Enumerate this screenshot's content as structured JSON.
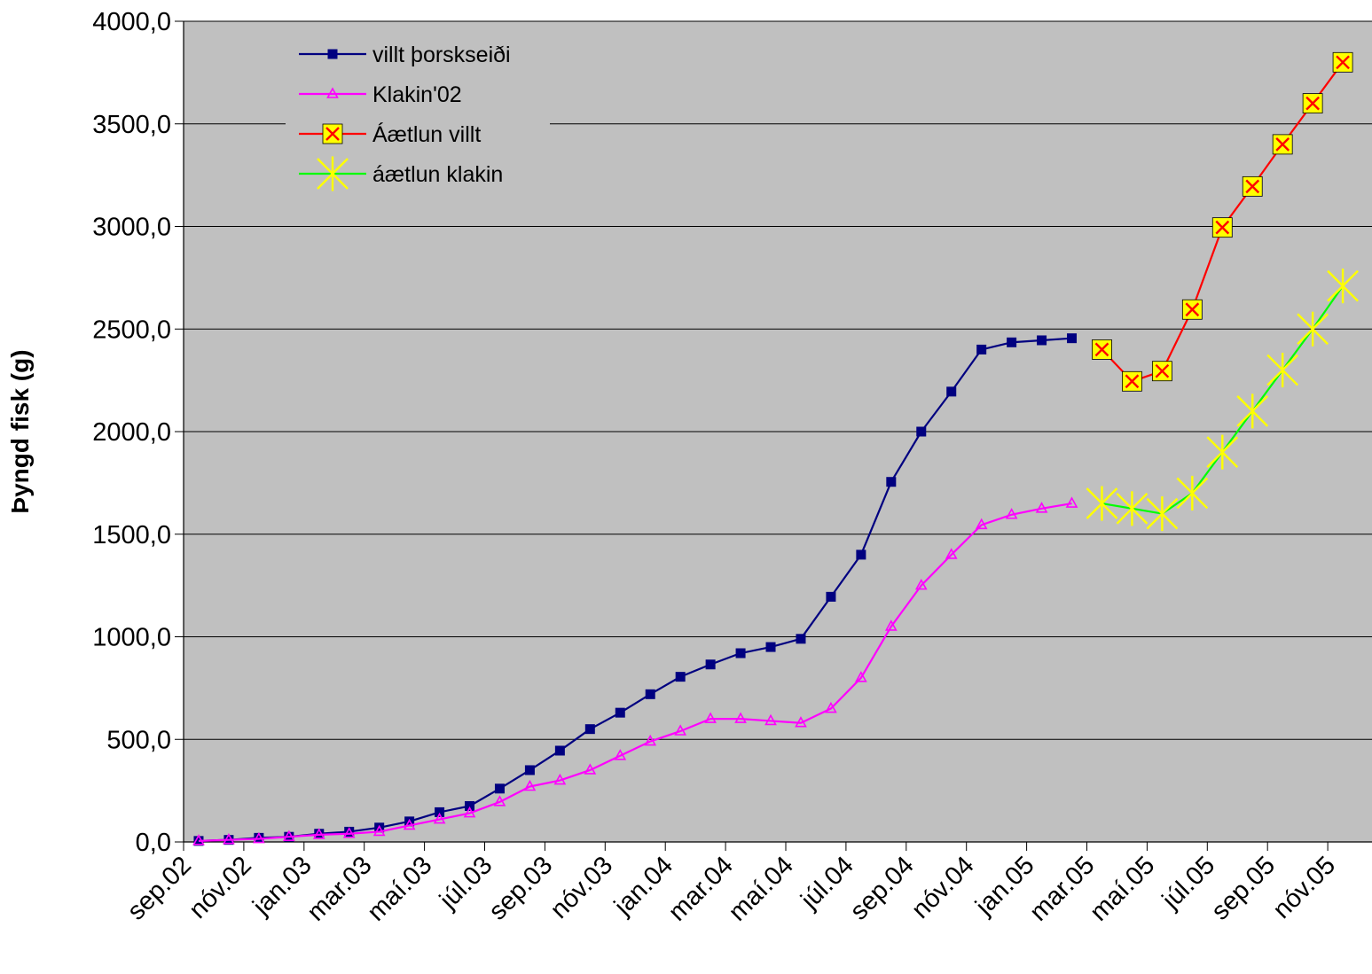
{
  "chart_data": {
    "type": "line",
    "title": "",
    "xlabel": "",
    "ylabel": "Þyngd fisk (g)",
    "ylim": [
      0,
      4000
    ],
    "y_ticks": [
      "0,0",
      "500,0",
      "1000,0",
      "1500,0",
      "2000,0",
      "2500,0",
      "3000,0",
      "3500,0",
      "4000,0"
    ],
    "x_tick_labels": [
      "sep.02",
      "nóv.02",
      "jan.03",
      "mar.03",
      "maí.03",
      "júl.03",
      "sep.03",
      "nóv.03",
      "jan.04",
      "mar.04",
      "maí.04",
      "júl.04",
      "sep.04",
      "nóv.04",
      "jan.05",
      "mar.05",
      "maí.05",
      "júl.05",
      "sep.05",
      "nóv.05"
    ],
    "grid": "horizontal",
    "legend_position": "top-left",
    "plot_background": "#C0C0C0",
    "series": [
      {
        "name": "villt þorskseiði",
        "color": "#000080",
        "marker": "square",
        "start_month_index": 1,
        "values": [
          5,
          10,
          20,
          25,
          40,
          50,
          70,
          100,
          145,
          175,
          260,
          350,
          445,
          550,
          630,
          720,
          805,
          865,
          920,
          950,
          990,
          1195,
          1400,
          1755,
          2000,
          2195,
          2400,
          2435,
          2445,
          2455
        ]
      },
      {
        "name": "Klakin'02",
        "color": "#FF00FF",
        "marker": "triangle",
        "start_month_index": 1,
        "values": [
          5,
          10,
          15,
          25,
          35,
          40,
          50,
          80,
          110,
          140,
          195,
          270,
          300,
          350,
          420,
          490,
          540,
          600,
          600,
          590,
          580,
          650,
          800,
          1050,
          1250,
          1400,
          1545,
          1595,
          1625,
          1650
        ]
      },
      {
        "name": "Áætlun villt",
        "color": "#FF0000",
        "marker": "x-box",
        "start_month_index": 31,
        "values": [
          2400,
          2245,
          2295,
          2595,
          2995,
          3195,
          3400,
          3600,
          3800
        ]
      },
      {
        "name": "áætlun klakin",
        "color": "#00FF00",
        "marker": "star",
        "start_month_index": 31,
        "values": [
          1650,
          1625,
          1600,
          1700,
          1900,
          2100,
          2300,
          2500,
          2710
        ]
      }
    ]
  }
}
